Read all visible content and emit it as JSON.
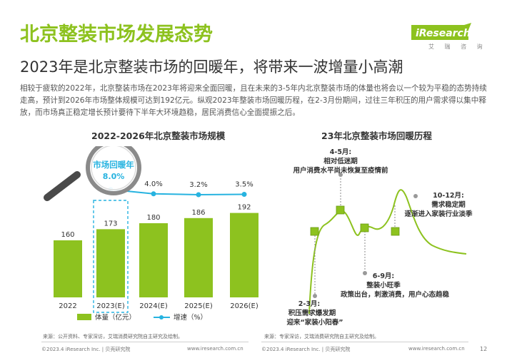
{
  "header": {
    "title": "北京整装市场发展态势",
    "subtitle": "2023年是北京整装市场的回暖年，将带来一波增量小高潮",
    "logo_text": "iResearch",
    "logo_sub": "艾 瑞 咨 询"
  },
  "paragraph": "相较于疲软的2022年，北京整装市场在2023年将迎来全面回暖，且在未来的3-5年内北京整装市场的体量也将会以一个较为平稳的态势持续走高，预计到2026年市场整体规模可达到192亿元。纵观2023年整装市场回暖历程，在2-3月份期间，过往三年积压的用户需求得以集中释放，而市场真正稳定增长预计要待下半年大环境趋稳，居民消费信心全面提振之后。",
  "left_chart": {
    "title": "2022-2026年北京整装市场规模",
    "magnifier_label": "市场回暖年",
    "magnifier_value": "8.0%",
    "source": "来源：公开资料、专家深访，艾瑞消费研究院自主研究及绘制。"
  },
  "right_chart": {
    "title": "23年北京整装市场回暖历程",
    "annotations": {
      "a45_l1": "4-5月:",
      "a45_l2": "相对低迷期",
      "a45_l3": "用户消费水平尚未恢复至疫情前",
      "a1012_l1": "10-12月:",
      "a1012_l2": "需求稳定期",
      "a1012_l3": "逐渐进入家装行业淡季",
      "a69_l1": "6-9月:",
      "a69_l2": "整装小旺季",
      "a69_l3": "政策出台，刺激消费，用户心态趋稳",
      "a23_l1": "2-3月:",
      "a23_l2": "积压需求爆发期",
      "a23_l3": "迎来“家装小阳春”"
    },
    "source": "来源：专家深访，艾瑞消费研究院自主研究及绘制。"
  },
  "footer": {
    "left_copyright": "©2023.4 iResearch Inc. | 贝壳研究院",
    "left_url": "www.iresearch.com.cn",
    "right_copyright": "©2023.4 iResearch Inc. | 贝壳研究院",
    "right_url": "www.iresearch.com.cn",
    "page_number": "12"
  },
  "colors": {
    "bar": "#8dc21f",
    "line": "#27b3e0",
    "accent": "#8dc21f"
  },
  "chart_data": [
    {
      "type": "bar",
      "title": "2022-2026年北京整装市场规模",
      "categories": [
        "2022",
        "2023(E)",
        "2024(E)",
        "2025(E)",
        "2026(E)"
      ],
      "series": [
        {
          "name": "体量（亿元）",
          "values": [
            160,
            173,
            180,
            186,
            192
          ]
        },
        {
          "name": "增速（%）",
          "type": "line",
          "values": [
            null,
            8.0,
            4.0,
            3.2,
            3.5
          ],
          "labels": [
            "",
            "8.0%",
            "4.0%",
            "3.2%",
            "3.5%"
          ]
        }
      ],
      "legend": "bottom",
      "highlight": "2023(E)"
    },
    {
      "type": "line",
      "title": "23年北京整装市场回暖历程",
      "x": [
        "2-3月",
        "4-5月",
        "6-9月",
        "10-12月"
      ],
      "y": [
        3,
        5,
        4,
        5
      ],
      "axis_labels": "none"
    }
  ]
}
